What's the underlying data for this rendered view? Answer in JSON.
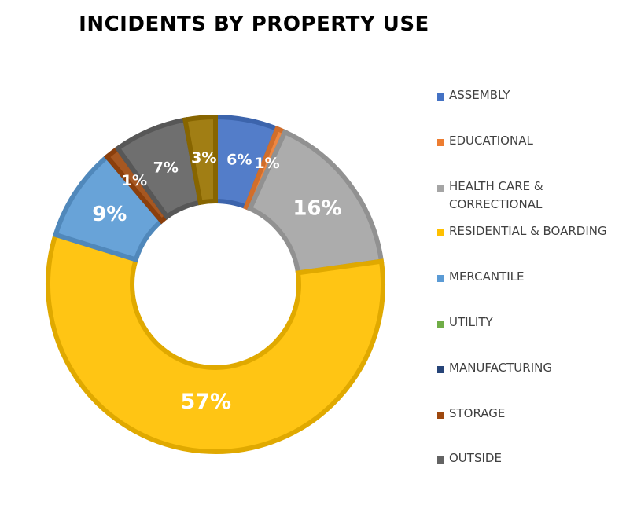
{
  "chart_data": {
    "type": "pie",
    "variant": "donut",
    "title": "INCIDENTS BY PROPERTY USE",
    "unit": "%",
    "legend_position": "right",
    "categories": [
      "ASSEMBLY",
      "EDUCATIONAL",
      "HEALTH CARE & CORRECTIONAL",
      "RESIDENTIAL & BOARDING",
      "MERCANTILE",
      "UTILITY",
      "MANUFACTURING",
      "STORAGE",
      "OUTSIDE",
      ""
    ],
    "legend_lines": [
      [
        "ASSEMBLY"
      ],
      [
        "EDUCATIONAL"
      ],
      [
        "HEALTH CARE &",
        "CORRECTIONAL"
      ],
      [
        "RESIDENTIAL & BOARDING"
      ],
      [
        "MERCANTILE"
      ],
      [
        "UTILITY"
      ],
      [
        "MANUFACTURING"
      ],
      [
        "STORAGE"
      ],
      [
        "OUTSIDE"
      ]
    ],
    "values": [
      6,
      0.8,
      16,
      57,
      9,
      0,
      0,
      1.3,
      7,
      2.9
    ],
    "labels": [
      "6%",
      "1%",
      "16%",
      "57%",
      "9%",
      "",
      "",
      "1%",
      "7%",
      "3%"
    ],
    "colors": [
      "#4472C4",
      "#ED7D31",
      "#A5A5A5",
      "#FFC000",
      "#5B9BD5",
      "#70AD47",
      "#264478",
      "#9E480E",
      "#636363",
      "#997300"
    ]
  }
}
